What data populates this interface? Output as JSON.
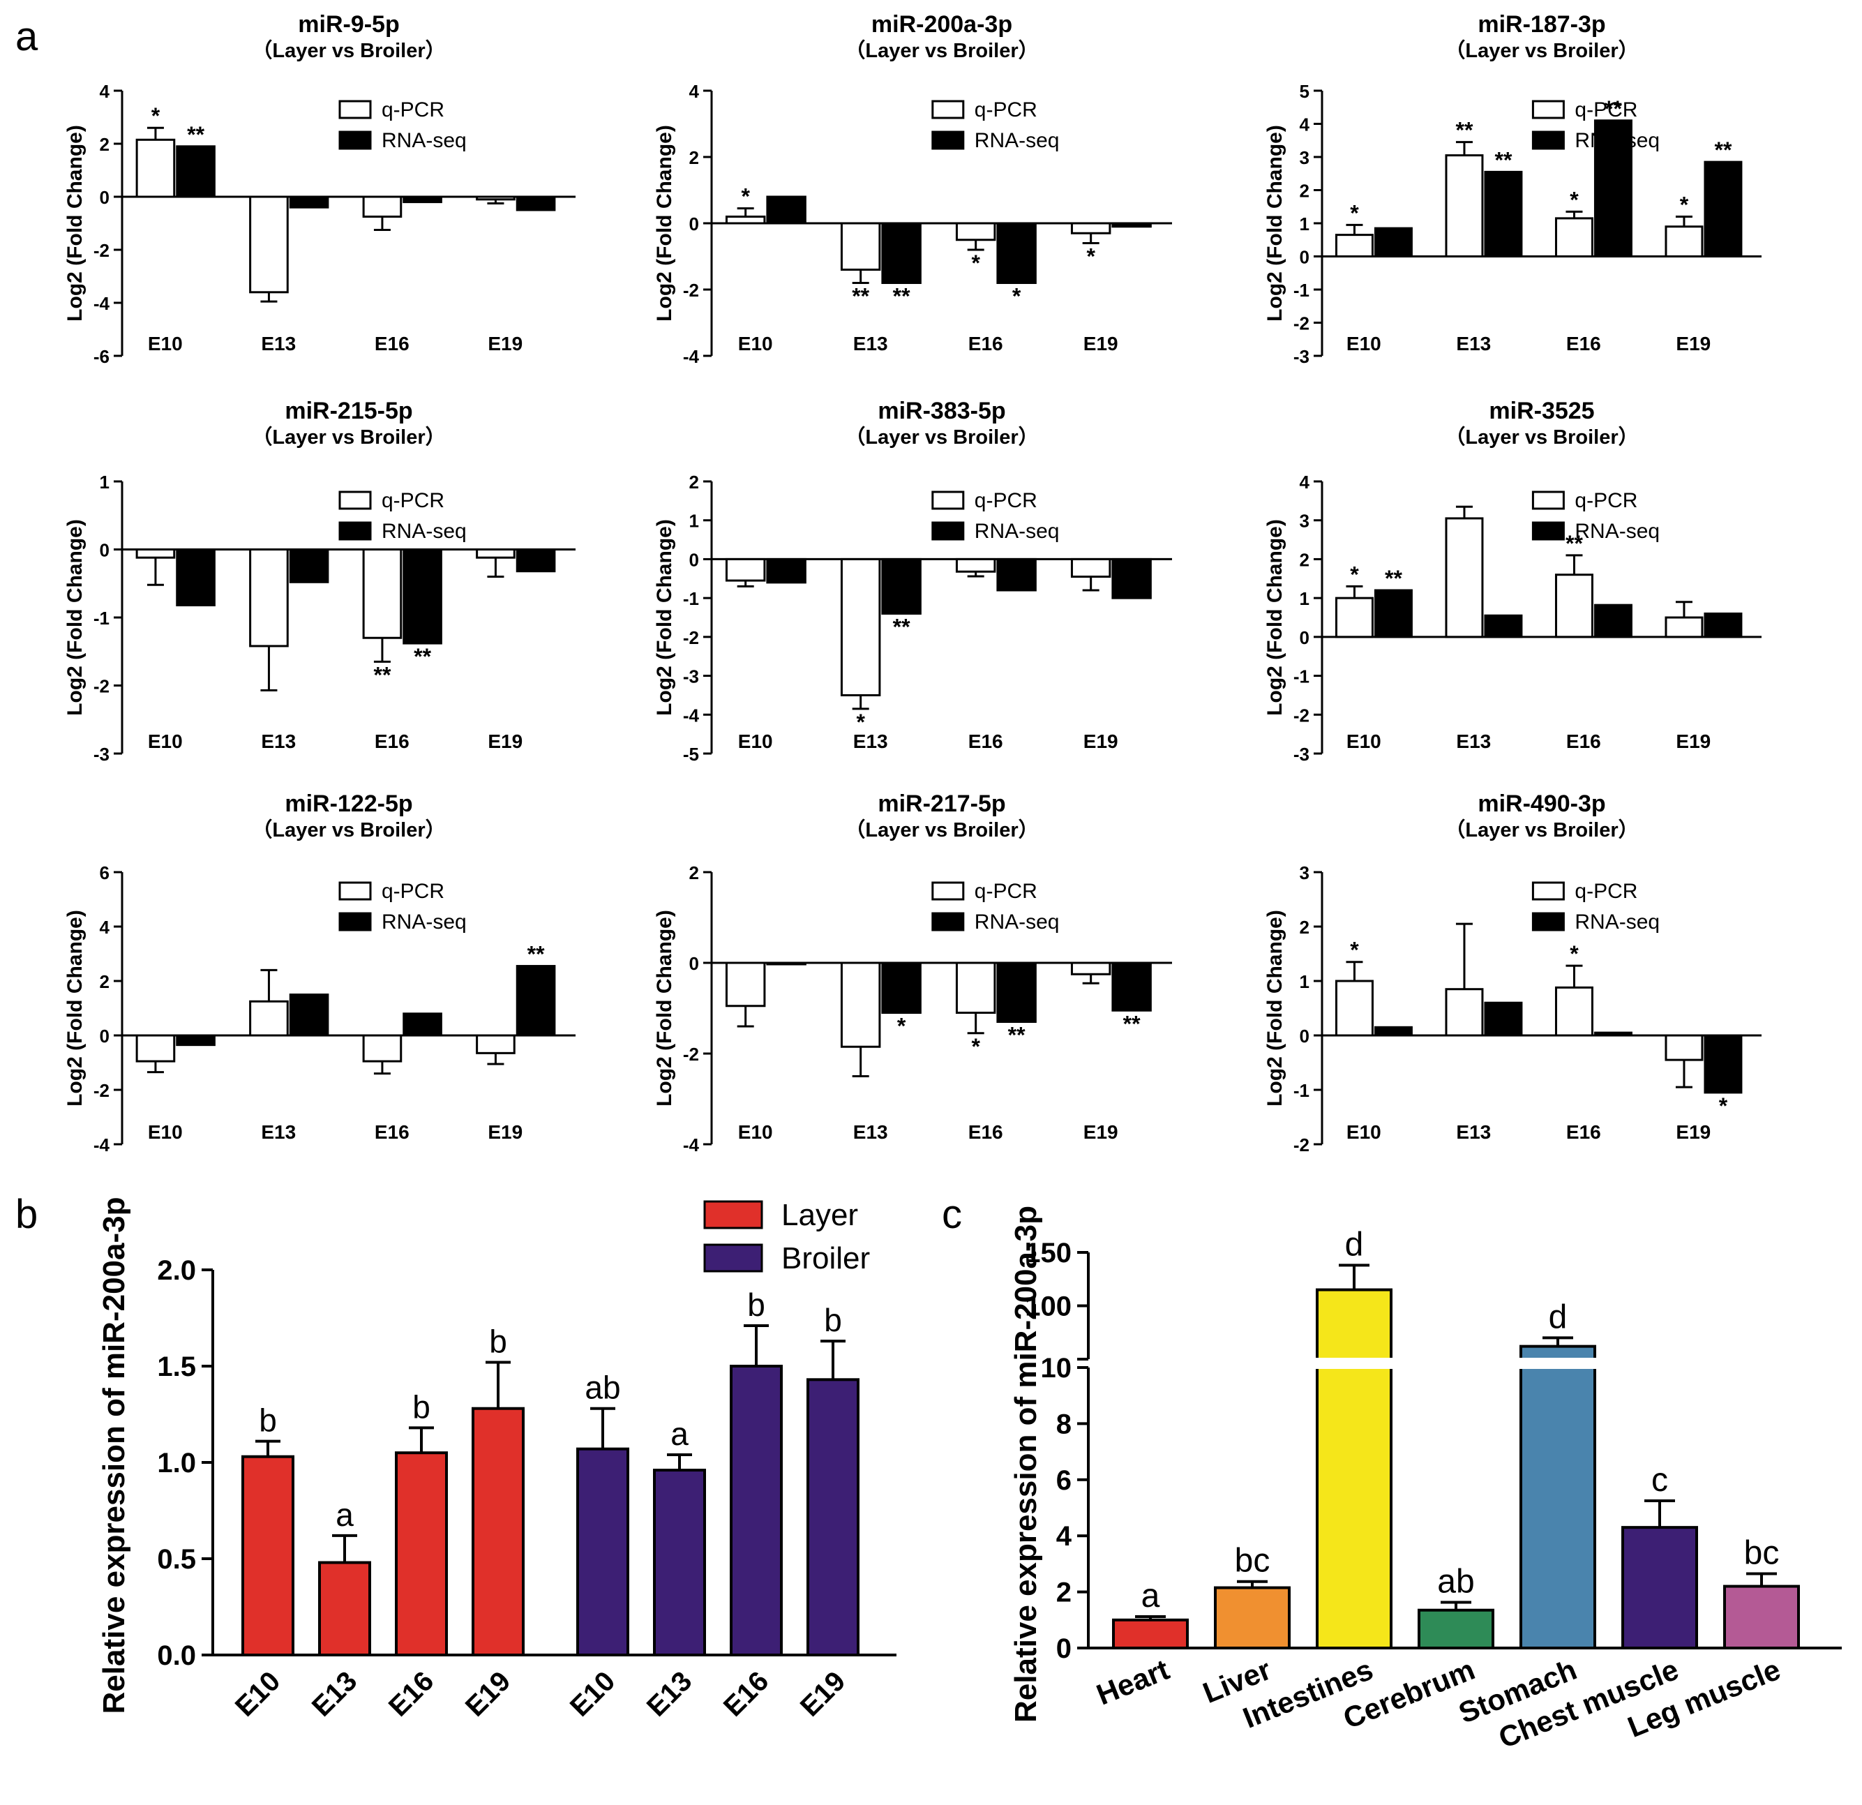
{
  "panel_labels": [
    "a",
    "b",
    "c"
  ],
  "chart_data": [
    {
      "panel": "a",
      "type": "bar",
      "title": "miR-9-5p",
      "subtitle": "（Layer vs Broiler）",
      "xlabel": "",
      "ylabel": "Log2 (Fold Change)",
      "categories": [
        "E10",
        "E13",
        "E16",
        "E19"
      ],
      "yticks": [
        "4",
        "2",
        "0",
        "-2",
        "-4",
        "-6"
      ],
      "series": [
        {
          "name": "q-PCR",
          "values": [
            2.15,
            -3.6,
            -0.75,
            -0.1
          ],
          "errors": [
            0.45,
            0.35,
            0.5,
            0.15
          ],
          "sig": [
            "*",
            "",
            "",
            ""
          ]
        },
        {
          "name": "RNA-seq",
          "values": [
            1.9,
            -0.4,
            -0.2,
            -0.5
          ],
          "errors": [
            0,
            0,
            0,
            0
          ],
          "sig": [
            "**",
            "",
            "",
            ""
          ]
        }
      ],
      "legend": "top-right"
    },
    {
      "panel": "a",
      "type": "bar",
      "title": "miR-200a-3p",
      "subtitle": "（Layer vs Broiler）",
      "xlabel": "",
      "ylabel": "Log2 (Fold Change)",
      "categories": [
        "E10",
        "E13",
        "E16",
        "E19"
      ],
      "ylim": [
        -4,
        4
      ],
      "yticks": [
        "4",
        "2",
        "0",
        "-2",
        "-4"
      ],
      "series": [
        {
          "name": "q-PCR",
          "values": [
            0.2,
            -1.4,
            -0.5,
            -0.3
          ],
          "errors": [
            0.25,
            0.4,
            0.3,
            0.3
          ],
          "sig": [
            "*",
            "**",
            "*",
            "*"
          ]
        },
        {
          "name": "RNA-seq",
          "values": [
            0.8,
            -1.8,
            -1.8,
            -0.1
          ],
          "errors": [
            0,
            0,
            0,
            0
          ],
          "sig": [
            "",
            "**",
            "*",
            ""
          ]
        }
      ],
      "legend": "top-right"
    },
    {
      "panel": "a",
      "type": "bar",
      "title": "miR-187-3p",
      "subtitle": "（Layer vs Broiler）",
      "xlabel": "",
      "ylabel": "Log2 (Fold Change)",
      "categories": [
        "E10",
        "E13",
        "E16",
        "E19"
      ],
      "ylim": [
        -3,
        5
      ],
      "yticks": [
        "5",
        "4",
        "3",
        "2",
        "1",
        "0",
        "-1",
        "-2",
        "-3"
      ],
      "series": [
        {
          "name": "q-PCR",
          "values": [
            0.65,
            3.05,
            1.15,
            0.9
          ],
          "errors": [
            0.3,
            0.4,
            0.2,
            0.3
          ],
          "sig": [
            "*",
            "**",
            "*",
            "*"
          ]
        },
        {
          "name": "RNA-seq",
          "values": [
            0.85,
            2.55,
            4.1,
            2.85
          ],
          "errors": [
            0,
            0,
            0,
            0
          ],
          "sig": [
            "",
            "**",
            "**",
            "**"
          ]
        }
      ],
      "legend": "top-right"
    },
    {
      "panel": "a",
      "type": "bar",
      "title": "miR-215-5p",
      "subtitle": "（Layer vs Broiler）",
      "xlabel": "",
      "ylabel": "Log2 (Fold Change)",
      "categories": [
        "E10",
        "E13",
        "E16",
        "E19"
      ],
      "ylim": [
        -3,
        1
      ],
      "yticks": [
        "1",
        "0",
        "-1",
        "-2",
        "-3"
      ],
      "series": [
        {
          "name": "q-PCR",
          "values": [
            -0.12,
            -1.42,
            -1.3,
            -0.12
          ],
          "errors": [
            0.4,
            0.65,
            0.35,
            0.28
          ],
          "sig": [
            "",
            "",
            "**",
            ""
          ]
        },
        {
          "name": "RNA-seq",
          "values": [
            -0.82,
            -0.48,
            -1.38,
            -0.32
          ],
          "errors": [
            0,
            0,
            0,
            0
          ],
          "sig": [
            "",
            "",
            "**",
            ""
          ]
        }
      ],
      "legend": "top-right"
    },
    {
      "panel": "a",
      "type": "bar",
      "title": "miR-383-5p",
      "subtitle": "（Layer vs Broiler）",
      "xlabel": "",
      "ylabel": "Log2 (Fold Change)",
      "categories": [
        "E10",
        "E13",
        "E16",
        "E19"
      ],
      "ylim": [
        -5,
        2
      ],
      "yticks": [
        "2",
        "1",
        "0",
        "-1",
        "-2",
        "-3",
        "-4",
        "-5"
      ],
      "series": [
        {
          "name": "q-PCR",
          "values": [
            -0.55,
            -3.5,
            -0.32,
            -0.45
          ],
          "errors": [
            0.15,
            0.35,
            0.12,
            0.35
          ],
          "sig": [
            "",
            "*",
            "",
            ""
          ]
        },
        {
          "name": "RNA-seq",
          "values": [
            -0.6,
            -1.4,
            -0.8,
            -1.0
          ],
          "errors": [
            0,
            0,
            0,
            0
          ],
          "sig": [
            "",
            "**",
            "",
            ""
          ]
        }
      ],
      "legend": "top-right"
    },
    {
      "panel": "a",
      "type": "bar",
      "title": "miR-3525",
      "subtitle": "（Layer vs Broiler）",
      "xlabel": "",
      "ylabel": "Log2 (Fold Change)",
      "categories": [
        "E10",
        "E13",
        "E16",
        "E19"
      ],
      "ylim": [
        -3,
        4
      ],
      "yticks": [
        "4",
        "3",
        "2",
        "1",
        "0",
        "-1",
        "-2",
        "-3"
      ],
      "series": [
        {
          "name": "q-PCR",
          "values": [
            1.0,
            3.05,
            1.6,
            0.5
          ],
          "errors": [
            0.3,
            0.3,
            0.5,
            0.4
          ],
          "sig": [
            "*",
            "",
            "**",
            ""
          ]
        },
        {
          "name": "RNA-seq",
          "values": [
            1.2,
            0.55,
            0.82,
            0.6
          ],
          "errors": [
            0,
            0,
            0,
            0
          ],
          "sig": [
            "**",
            "",
            "",
            ""
          ]
        }
      ],
      "legend": "top-right"
    },
    {
      "panel": "a",
      "type": "bar",
      "title": "miR-122-5p",
      "subtitle": "（Layer vs Broiler）",
      "xlabel": "",
      "ylabel": "Log2 (Fold Change)",
      "categories": [
        "E10",
        "E13",
        "E16",
        "E19"
      ],
      "ylim": [
        -4,
        6
      ],
      "yticks": [
        "6",
        "4",
        "2",
        "0",
        "-2",
        "-4"
      ],
      "series": [
        {
          "name": "q-PCR",
          "values": [
            -0.95,
            1.25,
            -0.95,
            -0.65
          ],
          "errors": [
            0.4,
            1.15,
            0.45,
            0.4
          ],
          "sig": [
            "",
            "",
            "",
            ""
          ]
        },
        {
          "name": "RNA-seq",
          "values": [
            -0.35,
            1.5,
            0.8,
            2.55
          ],
          "errors": [
            0,
            0,
            0,
            0
          ],
          "sig": [
            "",
            "",
            "",
            "**"
          ]
        }
      ],
      "legend": "top-right"
    },
    {
      "panel": "a",
      "type": "bar",
      "title": "miR-217-5p",
      "subtitle": "（Layer vs Broiler）",
      "xlabel": "",
      "ylabel": "Log2 (Fold Change)",
      "categories": [
        "E10",
        "E13",
        "E16",
        "E19"
      ],
      "ylim": [
        -4,
        2
      ],
      "yticks": [
        "2",
        "0",
        "-2",
        "-4"
      ],
      "series": [
        {
          "name": "q-PCR",
          "values": [
            -0.95,
            -1.85,
            -1.1,
            -0.25
          ],
          "errors": [
            0.45,
            0.65,
            0.45,
            0.2
          ],
          "sig": [
            "",
            "",
            "*",
            ""
          ]
        },
        {
          "name": "RNA-seq",
          "values": [
            -0.02,
            -1.1,
            -1.3,
            -1.05
          ],
          "errors": [
            0,
            0,
            0,
            0
          ],
          "sig": [
            "",
            "*",
            "**",
            "**"
          ]
        }
      ],
      "legend": "top-right"
    },
    {
      "panel": "a",
      "type": "bar",
      "title": "miR-490-3p",
      "subtitle": "（Layer vs Broiler）",
      "xlabel": "",
      "ylabel": "Log2 (Fold Change)",
      "categories": [
        "E10",
        "E13",
        "E16",
        "E19"
      ],
      "ylim": [
        -2,
        3
      ],
      "yticks": [
        "3",
        "2",
        "1",
        "0",
        "-1",
        "-2"
      ],
      "series": [
        {
          "name": "q-PCR",
          "values": [
            1.0,
            0.85,
            0.88,
            -0.45
          ],
          "errors": [
            0.35,
            1.2,
            0.4,
            0.5
          ],
          "sig": [
            "*",
            "",
            "*",
            ""
          ]
        },
        {
          "name": "RNA-seq",
          "values": [
            0.15,
            0.6,
            0.05,
            -1.05
          ],
          "errors": [
            0,
            0,
            0,
            0
          ],
          "sig": [
            "",
            "",
            "",
            "*"
          ]
        }
      ],
      "legend": "top-right"
    },
    {
      "panel": "b",
      "type": "bar",
      "title": "",
      "xlabel": "",
      "ylabel": "Relative expression of miR-200a-3p",
      "ylim": [
        0,
        2
      ],
      "yticks": [
        "0.0",
        "0.5",
        "1.0",
        "1.5",
        "2.0"
      ],
      "groups": [
        {
          "name": "Layer",
          "color": "#e0302a",
          "categories": [
            "E10",
            "E13",
            "E16",
            "E19"
          ],
          "values": [
            1.03,
            0.48,
            1.05,
            1.28
          ],
          "errors": [
            0.08,
            0.14,
            0.13,
            0.24
          ],
          "letters": [
            "b",
            "a",
            "b",
            "b"
          ]
        },
        {
          "name": "Broiler",
          "color": "#3d1f74",
          "categories": [
            "E10",
            "E13",
            "E16",
            "E19"
          ],
          "values": [
            1.07,
            0.96,
            1.5,
            1.43
          ],
          "errors": [
            0.21,
            0.08,
            0.21,
            0.2
          ],
          "letters": [
            "ab",
            "a",
            "b",
            "b"
          ]
        }
      ],
      "legend": "top-right"
    },
    {
      "panel": "c",
      "type": "bar",
      "title": "",
      "xlabel": "",
      "ylabel": "Relative expression of miR-200a-3p",
      "axis_break": [
        10,
        50
      ],
      "yticks_lower": [
        "0",
        "2",
        "4",
        "6",
        "8",
        "10"
      ],
      "yticks_upper": [
        "100",
        "150"
      ],
      "categories": [
        "Heart",
        "Liver",
        "Intestines",
        "Cerebrum",
        "Stomach",
        "Chest muscle",
        "Leg muscle"
      ],
      "values": [
        1.0,
        2.15,
        115,
        1.35,
        62,
        4.3,
        2.2
      ],
      "errors": [
        0.12,
        0.22,
        23,
        0.28,
        8,
        0.95,
        0.45
      ],
      "letters": [
        "a",
        "bc",
        "d",
        "ab",
        "d",
        "c",
        "bc"
      ],
      "colors": [
        "#e0302a",
        "#f09030",
        "#f5e61a",
        "#2e8b57",
        "#4a84ad",
        "#3d1f74",
        "#b45a95"
      ]
    }
  ]
}
